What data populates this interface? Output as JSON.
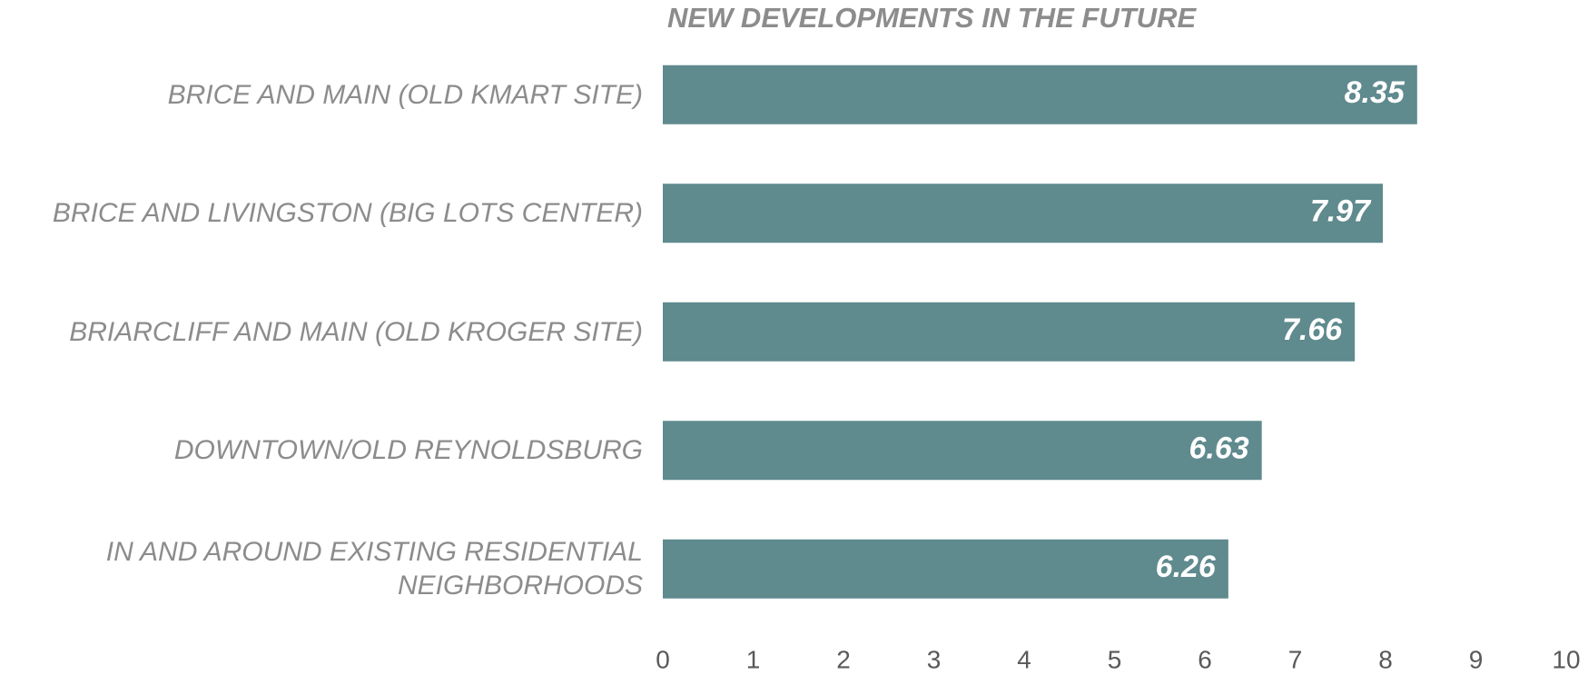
{
  "chart_data": {
    "type": "bar",
    "orientation": "horizontal",
    "title": "NEW DEVELOPMENTS IN THE FUTURE",
    "categories": [
      "BRICE AND MAIN (OLD KMART SITE)",
      "BRICE AND LIVINGSTON (BIG LOTS CENTER)",
      "BRIARCLIFF AND MAIN (OLD KROGER SITE)",
      "DOWNTOWN/OLD REYNOLDSBURG",
      "IN AND AROUND EXISTING RESIDENTIAL NEIGHBORHOODS"
    ],
    "values": [
      8.35,
      7.97,
      7.66,
      6.63,
      6.26
    ],
    "color": "#5f8a8e",
    "xlim": [
      0,
      10
    ],
    "xticks": [
      0,
      1,
      2,
      3,
      4,
      5,
      6,
      7,
      8,
      9,
      10
    ],
    "grid": false
  }
}
